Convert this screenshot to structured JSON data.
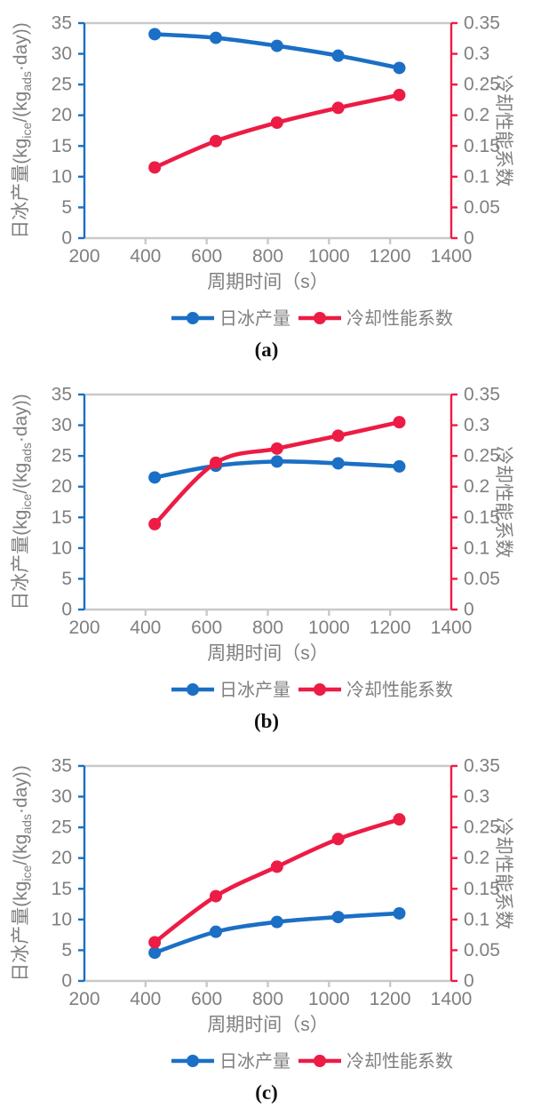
{
  "styles": {
    "axis_gray": "#c9c9c9",
    "tick_label_color": "#7f7f7f",
    "title_color": "#7f7f7f",
    "legend_text_color": "#7f7f7f",
    "caption_color": "#111111",
    "blue": "#1b6fc5",
    "red": "#ec1c45"
  },
  "chart_data": [
    {
      "type": "line",
      "panel_label": "(a)",
      "x": [
        430,
        630,
        830,
        1030,
        1230
      ],
      "xlim": [
        200,
        1400
      ],
      "xticks": [
        200,
        400,
        600,
        800,
        1000,
        1200,
        1400
      ],
      "xlabel": "周期时间（s）",
      "grid": "top-border-only",
      "legend_position": "bottom",
      "left_axis": {
        "label_parts": [
          {
            "text": "日冰产量(kg"
          },
          {
            "text": "ice",
            "sub": true
          },
          {
            "text": "/(kg"
          },
          {
            "text": "ads",
            "sub": true
          },
          {
            "text": "·day))"
          }
        ],
        "lim": [
          0,
          35
        ],
        "ticks": [
          0,
          5,
          10,
          15,
          20,
          25,
          30,
          35
        ],
        "color": "#1b6fc5"
      },
      "right_axis": {
        "label": "冷却性能系数",
        "lim": [
          0,
          0.35
        ],
        "ticks": [
          0,
          0.05,
          0.1,
          0.15,
          0.2,
          0.25,
          0.3,
          0.35
        ],
        "color": "#ec1c45"
      },
      "series": [
        {
          "name": "日冰产量",
          "axis": "left",
          "color": "#1b6fc5",
          "values": [
            33.2,
            32.6,
            31.3,
            29.7,
            27.7
          ]
        },
        {
          "name": "冷却性能系数",
          "axis": "right",
          "color": "#ec1c45",
          "values": [
            0.115,
            0.158,
            0.188,
            0.212,
            0.233
          ]
        }
      ]
    },
    {
      "type": "line",
      "panel_label": "(b)",
      "x": [
        430,
        630,
        830,
        1030,
        1230
      ],
      "xlim": [
        200,
        1400
      ],
      "xticks": [
        200,
        400,
        600,
        800,
        1000,
        1200,
        1400
      ],
      "xlabel": "周期时间（s）",
      "grid": "top-border-only",
      "legend_position": "bottom",
      "left_axis": {
        "label_parts": [
          {
            "text": "日冰产量(kg"
          },
          {
            "text": "ice",
            "sub": true
          },
          {
            "text": "/(kg"
          },
          {
            "text": "ads",
            "sub": true
          },
          {
            "text": "·day))"
          }
        ],
        "lim": [
          0,
          35
        ],
        "ticks": [
          0,
          5,
          10,
          15,
          20,
          25,
          30,
          35
        ],
        "color": "#1b6fc5"
      },
      "right_axis": {
        "label": "冷却性能系数",
        "lim": [
          0,
          0.35
        ],
        "ticks": [
          0,
          0.05,
          0.1,
          0.15,
          0.2,
          0.25,
          0.3,
          0.35
        ],
        "color": "#ec1c45"
      },
      "series": [
        {
          "name": "日冰产量",
          "axis": "left",
          "color": "#1b6fc5",
          "values": [
            21.5,
            23.4,
            24.1,
            23.8,
            23.3
          ]
        },
        {
          "name": "冷却性能系数",
          "axis": "right",
          "color": "#ec1c45",
          "values": [
            0.139,
            0.239,
            0.262,
            0.283,
            0.305
          ]
        }
      ]
    },
    {
      "type": "line",
      "panel_label": "(c)",
      "x": [
        430,
        630,
        830,
        1030,
        1230
      ],
      "xlim": [
        200,
        1400
      ],
      "xticks": [
        200,
        400,
        600,
        800,
        1000,
        1200,
        1400
      ],
      "xlabel": "周期时间（s）",
      "grid": "top-border-only",
      "legend_position": "bottom",
      "left_axis": {
        "label_parts": [
          {
            "text": "日冰产量(kg"
          },
          {
            "text": "ice",
            "sub": true
          },
          {
            "text": "/(kg"
          },
          {
            "text": "ads",
            "sub": true
          },
          {
            "text": "·day))"
          }
        ],
        "lim": [
          0,
          35
        ],
        "ticks": [
          0,
          5,
          10,
          15,
          20,
          25,
          30,
          35
        ],
        "color": "#1b6fc5"
      },
      "right_axis": {
        "label": "冷却性能系数",
        "lim": [
          0,
          0.35
        ],
        "ticks": [
          0,
          0.05,
          0.1,
          0.15,
          0.2,
          0.25,
          0.3,
          0.35
        ],
        "color": "#ec1c45"
      },
      "series": [
        {
          "name": "日冰产量",
          "axis": "left",
          "color": "#1b6fc5",
          "values": [
            4.6,
            8.0,
            9.6,
            10.4,
            11.0
          ]
        },
        {
          "name": "冷却性能系数",
          "axis": "right",
          "color": "#ec1c45",
          "values": [
            0.063,
            0.138,
            0.186,
            0.231,
            0.263
          ]
        }
      ]
    }
  ]
}
